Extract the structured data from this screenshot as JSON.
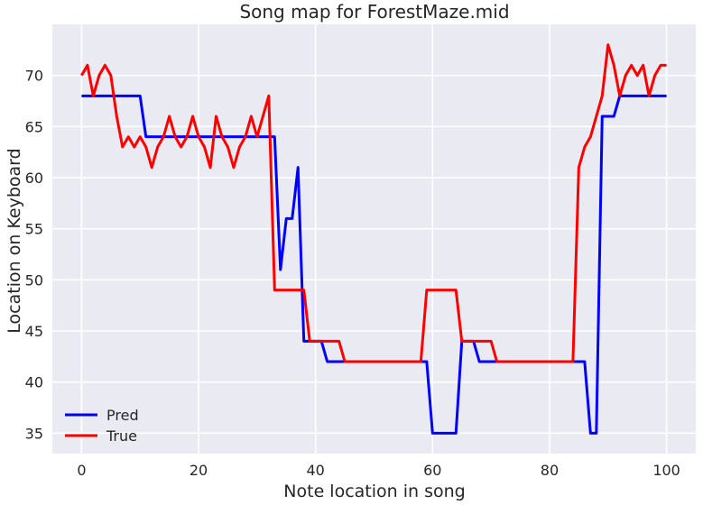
{
  "chart_data": {
    "type": "line",
    "title": "Song map for ForestMaze.mid",
    "xlabel": "Note location in song",
    "ylabel": "Location on Keyboard",
    "xlim": [
      -5,
      105
    ],
    "ylim": [
      33,
      75
    ],
    "xticks": [
      0,
      20,
      40,
      60,
      80,
      100
    ],
    "yticks": [
      35,
      40,
      45,
      50,
      55,
      60,
      65,
      70
    ],
    "grid": true,
    "legend_position": "lower-left",
    "series": [
      {
        "name": "Pred",
        "color": "#0000ff",
        "x": [
          0,
          1,
          2,
          3,
          4,
          5,
          6,
          7,
          8,
          9,
          10,
          11,
          12,
          13,
          14,
          15,
          16,
          17,
          18,
          19,
          20,
          21,
          22,
          23,
          24,
          25,
          26,
          27,
          28,
          29,
          30,
          31,
          32,
          33,
          34,
          35,
          36,
          37,
          38,
          39,
          40,
          41,
          42,
          43,
          44,
          45,
          46,
          47,
          48,
          49,
          50,
          51,
          52,
          53,
          54,
          55,
          56,
          57,
          58,
          59,
          60,
          61,
          62,
          63,
          64,
          65,
          66,
          67,
          68,
          69,
          70,
          71,
          72,
          73,
          74,
          75,
          76,
          77,
          78,
          79,
          80,
          81,
          82,
          83,
          84,
          85,
          86,
          87,
          88,
          89,
          90,
          91,
          92,
          93,
          94,
          95,
          96,
          97,
          98,
          99,
          100
        ],
        "y": [
          68,
          68,
          68,
          68,
          68,
          68,
          68,
          68,
          68,
          68,
          68,
          64,
          64,
          64,
          64,
          64,
          64,
          64,
          64,
          64,
          64,
          64,
          64,
          64,
          64,
          64,
          64,
          64,
          64,
          64,
          64,
          64,
          64,
          64,
          51,
          56,
          56,
          61,
          44,
          44,
          44,
          44,
          42,
          42,
          42,
          42,
          42,
          42,
          42,
          42,
          42,
          42,
          42,
          42,
          42,
          42,
          42,
          42,
          42,
          42,
          35,
          35,
          35,
          35,
          35,
          44,
          44,
          44,
          42,
          42,
          42,
          42,
          42,
          42,
          42,
          42,
          42,
          42,
          42,
          42,
          42,
          42,
          42,
          42,
          42,
          42,
          42,
          35,
          35,
          66,
          66,
          66,
          68,
          68,
          68,
          68,
          68,
          68,
          68,
          68,
          68
        ]
      },
      {
        "name": "True",
        "color": "#ff0000",
        "x": [
          0,
          1,
          2,
          3,
          4,
          5,
          6,
          7,
          8,
          9,
          10,
          11,
          12,
          13,
          14,
          15,
          16,
          17,
          18,
          19,
          20,
          21,
          22,
          23,
          24,
          25,
          26,
          27,
          28,
          29,
          30,
          31,
          32,
          33,
          34,
          35,
          36,
          37,
          38,
          39,
          40,
          41,
          42,
          43,
          44,
          45,
          46,
          47,
          48,
          49,
          50,
          51,
          52,
          53,
          54,
          55,
          56,
          57,
          58,
          59,
          60,
          61,
          62,
          63,
          64,
          65,
          66,
          67,
          68,
          69,
          70,
          71,
          72,
          73,
          74,
          75,
          76,
          77,
          78,
          79,
          80,
          81,
          82,
          83,
          84,
          85,
          86,
          87,
          88,
          89,
          90,
          91,
          92,
          93,
          94,
          95,
          96,
          97,
          98,
          99,
          100
        ],
        "y": [
          70,
          71,
          68,
          70,
          71,
          70,
          66,
          63,
          64,
          63,
          64,
          63,
          61,
          63,
          64,
          66,
          64,
          63,
          64,
          66,
          64,
          63,
          61,
          66,
          64,
          63,
          61,
          63,
          64,
          66,
          64,
          66,
          68,
          49,
          49,
          49,
          49,
          49,
          49,
          44,
          44,
          44,
          44,
          44,
          44,
          42,
          42,
          42,
          42,
          42,
          42,
          42,
          42,
          42,
          42,
          42,
          42,
          42,
          42,
          49,
          49,
          49,
          49,
          49,
          49,
          44,
          44,
          44,
          44,
          44,
          44,
          42,
          42,
          42,
          42,
          42,
          42,
          42,
          42,
          42,
          42,
          42,
          42,
          42,
          42,
          61,
          63,
          64,
          66,
          68,
          73,
          71,
          68,
          70,
          71,
          70,
          71,
          68,
          70,
          71,
          71
        ]
      }
    ]
  }
}
